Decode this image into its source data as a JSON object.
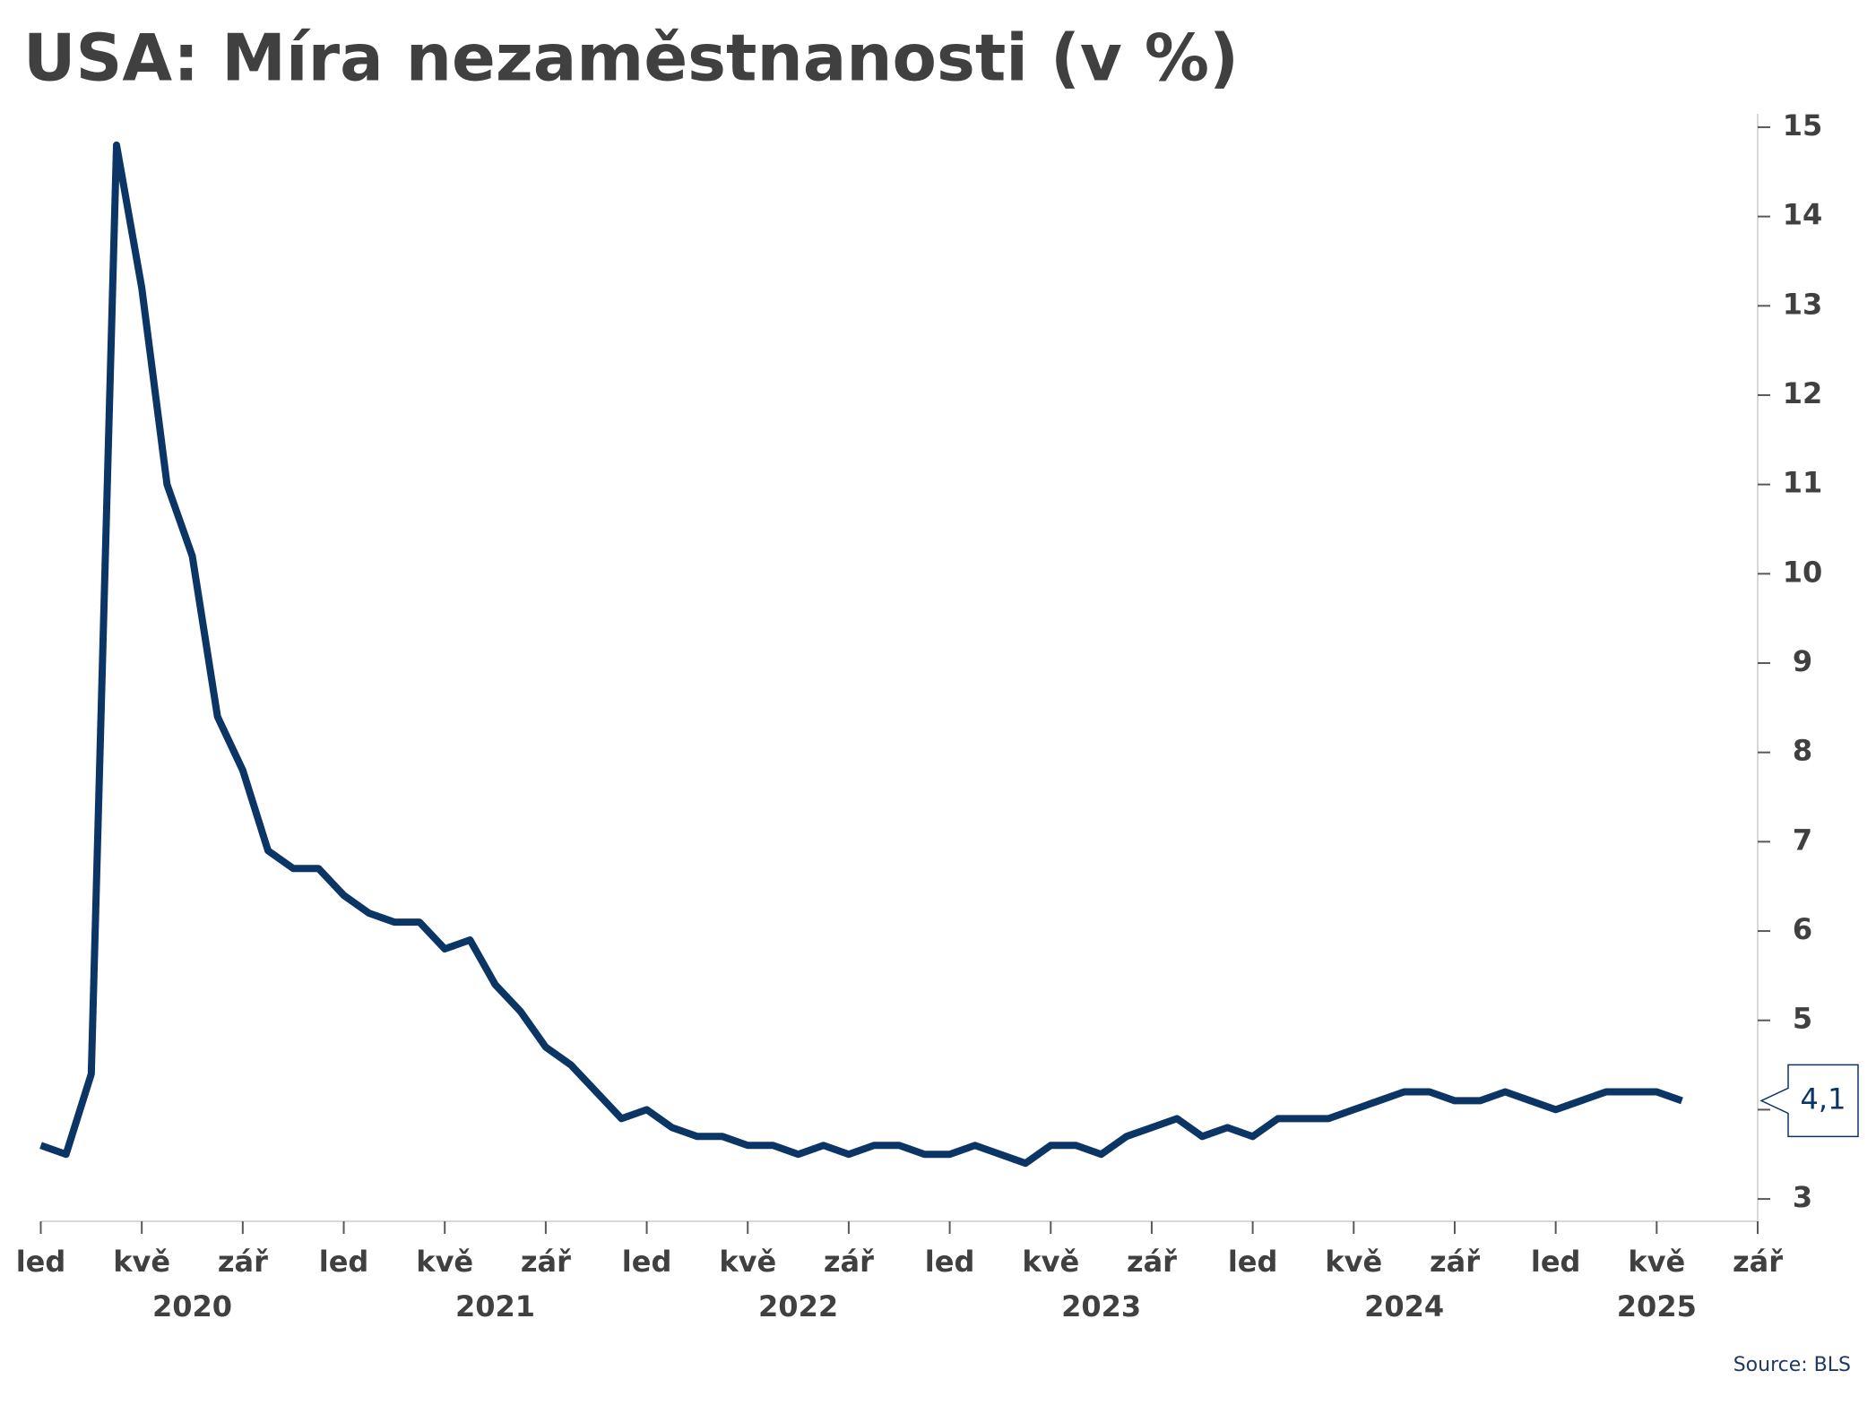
{
  "chart_data": {
    "type": "line",
    "title": "USA: Míra nezaměstnanosti (v %)",
    "source": "Source: BLS",
    "x": [
      "2020-01",
      "2020-02",
      "2020-03",
      "2020-04",
      "2020-05",
      "2020-06",
      "2020-07",
      "2020-08",
      "2020-09",
      "2020-10",
      "2020-11",
      "2020-12",
      "2021-01",
      "2021-02",
      "2021-03",
      "2021-04",
      "2021-05",
      "2021-06",
      "2021-07",
      "2021-08",
      "2021-09",
      "2021-10",
      "2021-11",
      "2021-12",
      "2022-01",
      "2022-02",
      "2022-03",
      "2022-04",
      "2022-05",
      "2022-06",
      "2022-07",
      "2022-08",
      "2022-09",
      "2022-10",
      "2022-11",
      "2022-12",
      "2023-01",
      "2023-02",
      "2023-03",
      "2023-04",
      "2023-05",
      "2023-06",
      "2023-07",
      "2023-08",
      "2023-09",
      "2023-10",
      "2023-11",
      "2023-12",
      "2024-01",
      "2024-02",
      "2024-03",
      "2024-04",
      "2024-05",
      "2024-06",
      "2024-07",
      "2024-08",
      "2024-09",
      "2024-10",
      "2024-11",
      "2024-12",
      "2025-01",
      "2025-02",
      "2025-03",
      "2025-04",
      "2025-05",
      "2025-06"
    ],
    "series": [
      {
        "name": "Míra nezaměstnanosti",
        "color": "#0b3565",
        "values": [
          3.6,
          3.5,
          4.4,
          14.8,
          13.2,
          11.0,
          10.2,
          8.4,
          7.8,
          6.9,
          6.7,
          6.7,
          6.4,
          6.2,
          6.1,
          6.1,
          5.8,
          5.9,
          5.4,
          5.1,
          4.7,
          4.5,
          4.2,
          3.9,
          4.0,
          3.8,
          3.7,
          3.7,
          3.6,
          3.6,
          3.5,
          3.6,
          3.5,
          3.6,
          3.6,
          3.5,
          3.5,
          3.6,
          3.5,
          3.4,
          3.6,
          3.6,
          3.5,
          3.7,
          3.8,
          3.9,
          3.7,
          3.8,
          3.7,
          3.9,
          3.9,
          3.9,
          4.0,
          4.1,
          4.2,
          4.2,
          4.1,
          4.1,
          4.2,
          4.1,
          4.0,
          4.1,
          4.2,
          4.2,
          4.2,
          4.1
        ],
        "end_label": "4,1"
      }
    ],
    "xlim": [
      "2020-01",
      "2025-09"
    ],
    "xticks": [
      {
        "value": "2020-01",
        "label": "led"
      },
      {
        "value": "2020-05",
        "label": "kvě"
      },
      {
        "value": "2020-09",
        "label": "zář"
      },
      {
        "value": "2021-01",
        "label": "led"
      },
      {
        "value": "2021-05",
        "label": "kvě"
      },
      {
        "value": "2021-09",
        "label": "zář"
      },
      {
        "value": "2022-01",
        "label": "led"
      },
      {
        "value": "2022-05",
        "label": "kvě"
      },
      {
        "value": "2022-09",
        "label": "zář"
      },
      {
        "value": "2023-01",
        "label": "led"
      },
      {
        "value": "2023-05",
        "label": "kvě"
      },
      {
        "value": "2023-09",
        "label": "zář"
      },
      {
        "value": "2024-01",
        "label": "led"
      },
      {
        "value": "2024-05",
        "label": "kvě"
      },
      {
        "value": "2024-09",
        "label": "zář"
      },
      {
        "value": "2025-01",
        "label": "led"
      },
      {
        "value": "2025-05",
        "label": "kvě"
      },
      {
        "value": "2025-09",
        "label": "zář"
      }
    ],
    "year_labels": [
      "2020",
      "2021",
      "2022",
      "2023",
      "2024",
      "2025"
    ],
    "ylim": [
      2.75,
      15.15
    ],
    "yticks": [
      3,
      4,
      5,
      6,
      7,
      8,
      9,
      10,
      11,
      12,
      13,
      14,
      15
    ],
    "y_axis_side": "right",
    "grid": false
  }
}
